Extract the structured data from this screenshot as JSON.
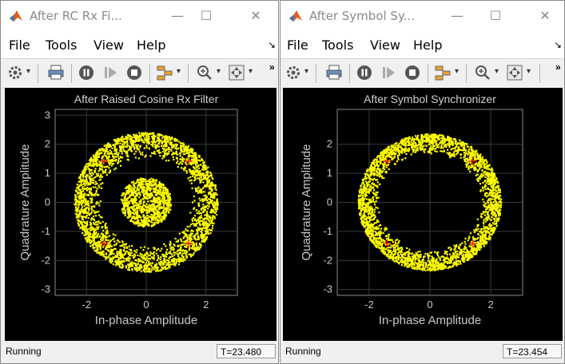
{
  "windows": [
    {
      "id": "A",
      "title": "After RC Rx Fi...",
      "menu": [
        "File",
        "Tools",
        "View",
        "Help"
      ],
      "status": "Running",
      "time": "T=23.480",
      "chart_data": {
        "type": "scatter",
        "title": "After Raised Cosine Rx Filter",
        "xlabel": "In-phase Amplitude",
        "ylabel": "Quadrature Amplitude",
        "xlim": [
          -3.05,
          3.05
        ],
        "ylim": [
          -3.2,
          3.2
        ],
        "xticks": [
          -2,
          0,
          2
        ],
        "yticks": [
          -3,
          -2,
          -1,
          0,
          1,
          2,
          3
        ],
        "grid": true,
        "background": "#000000",
        "point_color": "#ffff00",
        "marker_color": "#ff0000",
        "rings": [
          {
            "r_min": 1.5,
            "r_max": 2.4
          },
          {
            "r_min": 0.05,
            "r_max": 0.85
          }
        ],
        "reference_points": [
          [
            1.414,
            1.414
          ],
          [
            -1.414,
            1.414
          ],
          [
            -1.414,
            -1.414
          ],
          [
            1.414,
            -1.414
          ]
        ]
      }
    },
    {
      "id": "B",
      "title": "After Symbol Sy...",
      "menu": [
        "File",
        "Tools",
        "View",
        "Help"
      ],
      "status": "Running",
      "time": "T=23.454",
      "chart_data": {
        "type": "scatter",
        "title": "After Symbol Synchronizer",
        "xlabel": "In-phase Amplitude",
        "ylabel": "Quadrature Amplitude",
        "xlim": [
          -3.05,
          3.05
        ],
        "ylim": [
          -3.2,
          3.2
        ],
        "xticks": [
          -2,
          0,
          2
        ],
        "yticks": [
          -3,
          -2,
          -1,
          0,
          1,
          2
        ],
        "grid": true,
        "background": "#000000",
        "point_color": "#ffff00",
        "marker_color": "#ff0000",
        "rings": [
          {
            "r_min": 1.65,
            "r_max": 2.35
          }
        ],
        "reference_points": [
          [
            1.414,
            1.414
          ],
          [
            -1.414,
            1.414
          ],
          [
            -1.414,
            -1.414
          ],
          [
            1.414,
            -1.414
          ]
        ]
      }
    }
  ],
  "icons": {
    "app": "matlab-logo-icon",
    "minimize": "minimize-icon",
    "maximize": "maximize-icon",
    "close": "close-icon",
    "toolbar": [
      "gear-icon",
      "print-icon",
      "pause-icon",
      "step-forward-icon",
      "stop-icon",
      "highlight-icon",
      "zoom-in-icon",
      "fit-to-view-icon"
    ]
  }
}
